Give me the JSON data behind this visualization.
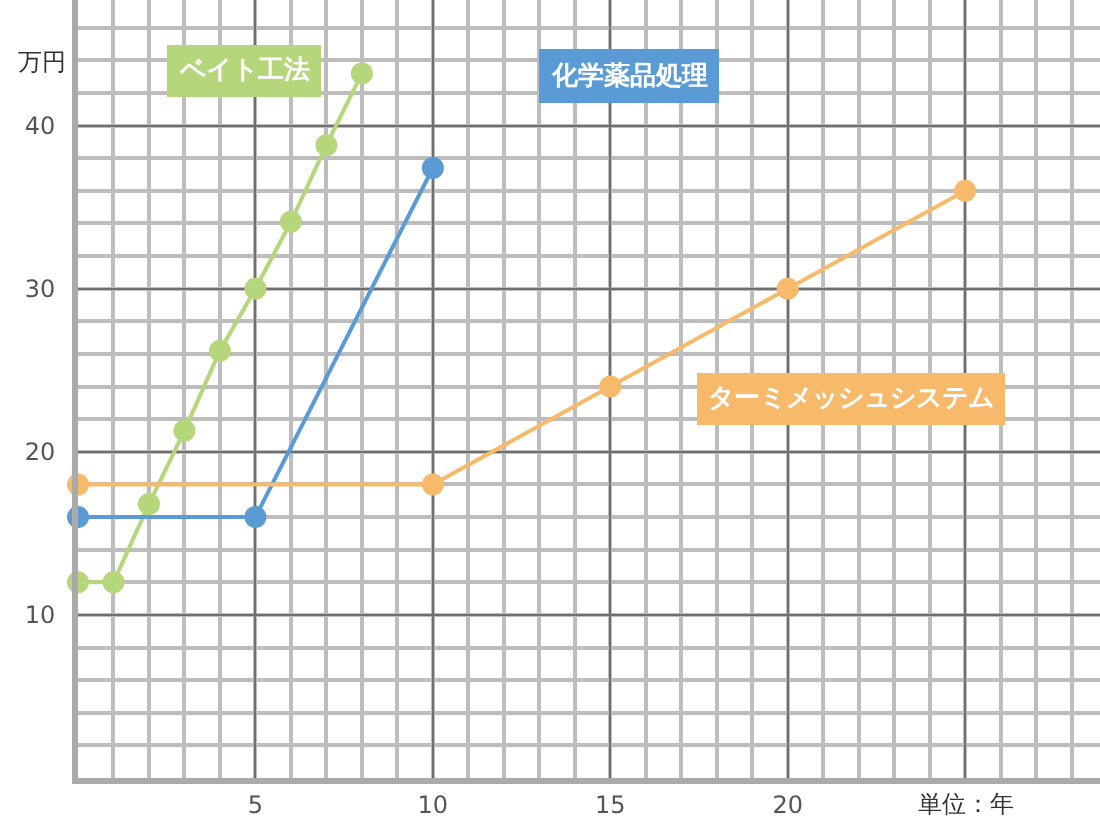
{
  "chart_data": {
    "type": "line",
    "ylabel": "万円",
    "xlabel": "単位：年",
    "xlim": [
      0,
      28.8
    ],
    "ylim": [
      0,
      47.7
    ],
    "xticks": [
      5,
      10,
      15,
      20,
      {
        "value": 25,
        "label": null
      }
    ],
    "yticks": [
      10,
      20,
      30,
      40
    ],
    "grid": true,
    "legend": false,
    "marker": "circle",
    "line_style": "solid",
    "series": [
      {
        "name": "ベイト工法",
        "color": "#b5d67b",
        "x": [
          0,
          1,
          2,
          3,
          4,
          5,
          6,
          7,
          8
        ],
        "values": [
          12,
          12,
          16.8,
          21.3,
          26.2,
          30,
          34.1,
          38.8,
          43.2
        ]
      },
      {
        "name": "化学薬品処理",
        "color": "#5b9bd5",
        "x": [
          0,
          5,
          10
        ],
        "values": [
          16,
          16,
          37.4
        ]
      },
      {
        "name": "ターミメッシュシステム",
        "color": "#f7b96a",
        "x": [
          0,
          10,
          15,
          20,
          25
        ],
        "values": [
          18,
          18,
          24,
          30,
          36
        ]
      }
    ]
  }
}
